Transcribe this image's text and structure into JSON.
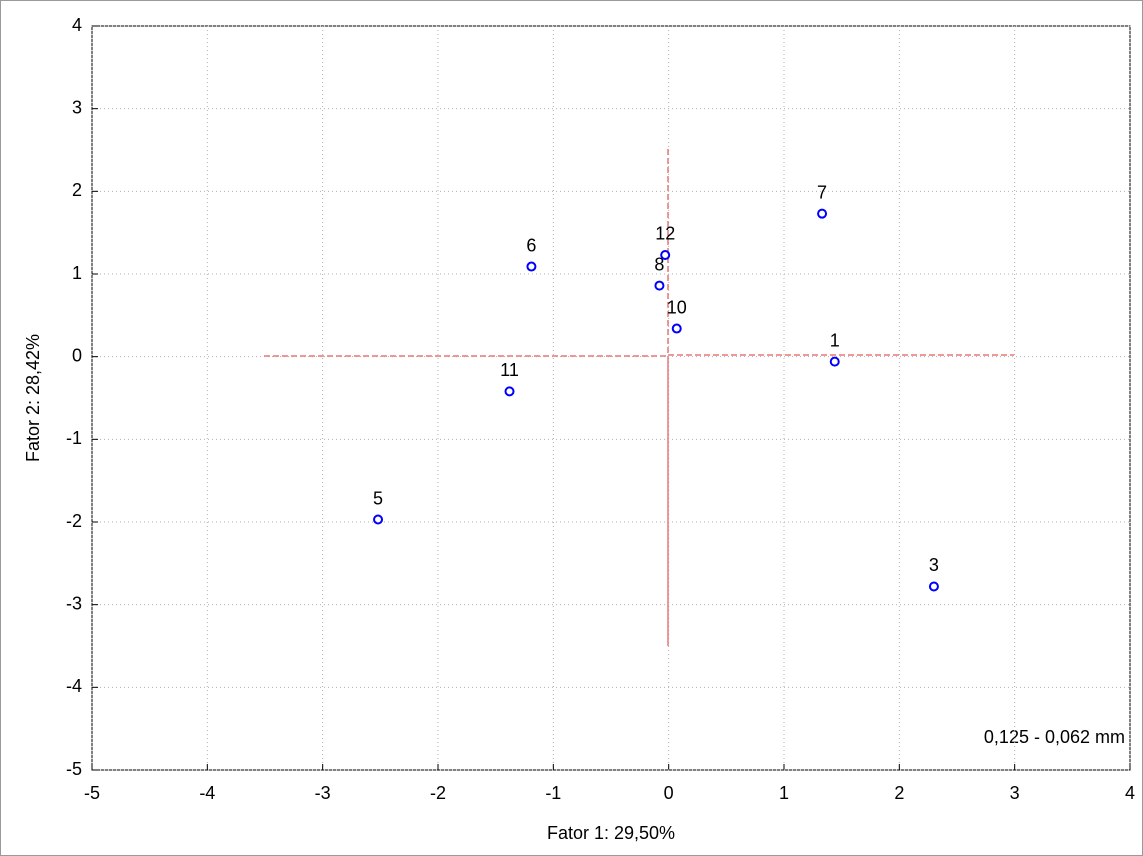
{
  "chart_data": {
    "type": "scatter",
    "xlabel": "Fator 1: 29,50%",
    "ylabel": "Fator 2: 28,42%",
    "annotation": "0,125 - 0,062 mm",
    "point_labels": [
      "1",
      "3",
      "5",
      "6",
      "7",
      "8",
      "10",
      "11",
      "12"
    ],
    "x": [
      1.44,
      2.3,
      -2.52,
      -1.19,
      1.33,
      -0.08,
      0.07,
      -1.38,
      -0.03
    ],
    "values": [
      -0.06,
      -2.78,
      -1.97,
      1.09,
      1.73,
      0.86,
      0.34,
      -0.42,
      1.23
    ],
    "color": "#0000ff",
    "xlim": [
      -5,
      4
    ],
    "xticks": [
      -5,
      -4,
      -3,
      -2,
      -1,
      0,
      1,
      2,
      3,
      4
    ],
    "ylim": [
      -5,
      4
    ],
    "yticks": [
      -5,
      -4,
      -3,
      -2,
      -1,
      0,
      1,
      2,
      3,
      4
    ],
    "grid": true
  }
}
